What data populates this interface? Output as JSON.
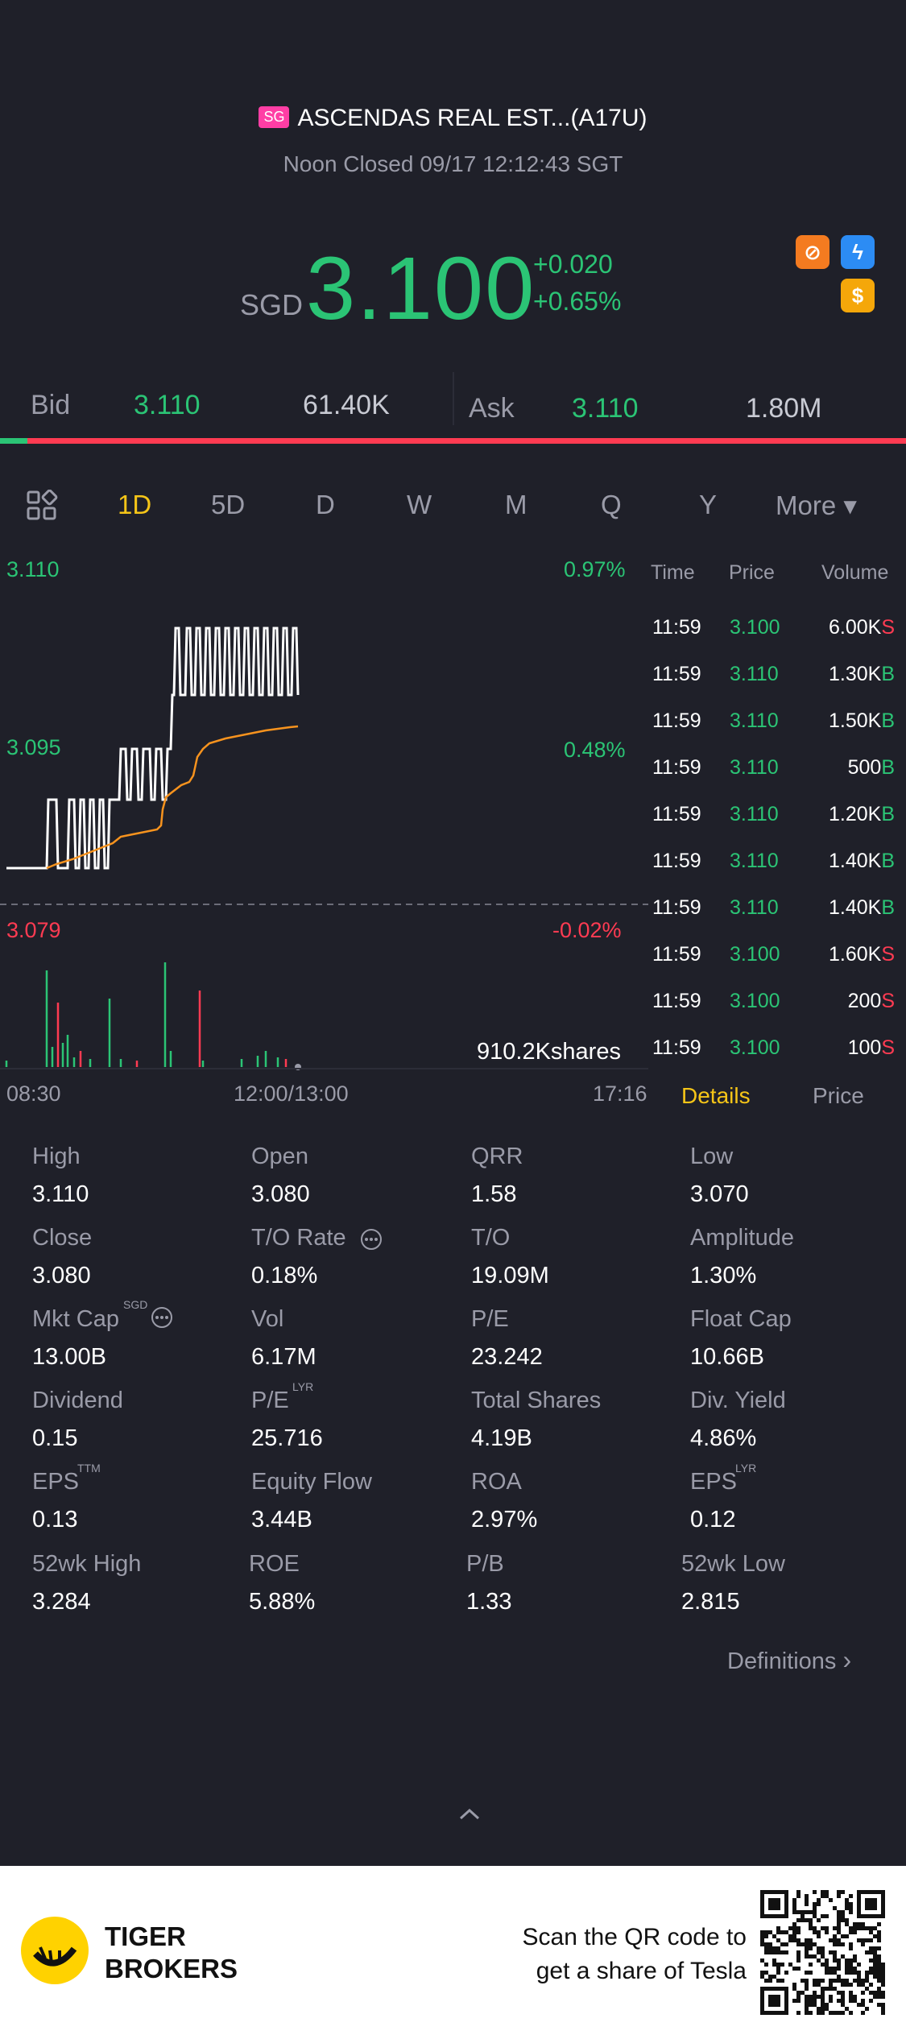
{
  "header": {
    "market": "SG",
    "name": "ASCENDAS REAL EST...(A17U)",
    "status": "Noon Closed 09/17 12:12:43 SGT",
    "currency": "SGD",
    "price": "3.100",
    "change": "+0.020",
    "change_pct": "+0.65%",
    "icons": [
      "no-short-icon",
      "lightning-icon",
      "dollar-icon"
    ]
  },
  "bidask": {
    "bid_label": "Bid",
    "bid_price": "3.110",
    "bid_size": "61.40K",
    "ask_label": "Ask",
    "ask_price": "3.110",
    "ask_size": "1.80M",
    "bid_share": 0.03
  },
  "tabs": [
    "1D",
    "5D",
    "D",
    "W",
    "M",
    "Q",
    "Y",
    "More ▾"
  ],
  "chart": {
    "y_high": "3.110",
    "y_mid": "3.095",
    "y_low": "3.079",
    "pct_high": "0.97%",
    "pct_mid": "0.48%",
    "pct_low": "-0.02%",
    "volume_label": "910.2Kshares",
    "x_start": "08:30",
    "x_mid": "12:00/13:00",
    "x_end": "17:16"
  },
  "ticks": {
    "headers": [
      "Time",
      "Price",
      "Volume"
    ],
    "rows": [
      {
        "time": "11:59",
        "price": "3.100",
        "vol": "6.00K",
        "side": "S"
      },
      {
        "time": "11:59",
        "price": "3.110",
        "vol": "1.30K",
        "side": "B"
      },
      {
        "time": "11:59",
        "price": "3.110",
        "vol": "1.50K",
        "side": "B"
      },
      {
        "time": "11:59",
        "price": "3.110",
        "vol": "500",
        "side": "B"
      },
      {
        "time": "11:59",
        "price": "3.110",
        "vol": "1.20K",
        "side": "B"
      },
      {
        "time": "11:59",
        "price": "3.110",
        "vol": "1.40K",
        "side": "B"
      },
      {
        "time": "11:59",
        "price": "3.110",
        "vol": "1.40K",
        "side": "B"
      },
      {
        "time": "11:59",
        "price": "3.100",
        "vol": "1.60K",
        "side": "S"
      },
      {
        "time": "11:59",
        "price": "3.100",
        "vol": "200",
        "side": "S"
      },
      {
        "time": "11:59",
        "price": "3.100",
        "vol": "100",
        "side": "S"
      }
    ]
  },
  "detail_tabs": {
    "details": "Details",
    "price": "Price"
  },
  "stats": [
    {
      "label": "High",
      "value": "3.110"
    },
    {
      "label": "Open",
      "value": "3.080"
    },
    {
      "label": "QRR",
      "value": "1.58"
    },
    {
      "label": "Low",
      "value": "3.070"
    },
    {
      "label": "Close",
      "value": "3.080"
    },
    {
      "label": "T/O Rate",
      "value": "0.18%"
    },
    {
      "label": "T/O",
      "value": "19.09M"
    },
    {
      "label": "Amplitude",
      "value": "1.30%"
    },
    {
      "label": "Mkt Cap",
      "value": "13.00B"
    },
    {
      "label": "Vol",
      "value": "6.17M"
    },
    {
      "label": "P/E",
      "value": "23.242"
    },
    {
      "label": "Float Cap",
      "value": "10.66B"
    },
    {
      "label": "Dividend",
      "value": "0.15"
    },
    {
      "label": "P/E",
      "value": "25.716"
    },
    {
      "label": "Total Shares",
      "value": "4.19B"
    },
    {
      "label": "Div. Yield",
      "value": "4.86%"
    },
    {
      "label": "EPS",
      "value": "0.13"
    },
    {
      "label": "Equity Flow",
      "value": "3.44B"
    },
    {
      "label": "ROA",
      "value": "2.97%"
    },
    {
      "label": "EPS",
      "value": "0.12"
    },
    {
      "label": "52wk High",
      "value": "3.284"
    },
    {
      "label": "ROE",
      "value": "5.88%"
    },
    {
      "label": "P/B",
      "value": "1.33"
    },
    {
      "label": "52wk Low",
      "value": "2.815"
    }
  ],
  "sups": {
    "mktcap": "SGD",
    "pe_lyr": "LYR",
    "eps_ttm": "TTM",
    "eps_lyr": "LYR"
  },
  "definitions": "Definitions",
  "footer": {
    "brand_line1": "TIGER",
    "brand_line2": "BROKERS",
    "scan_line1": "Scan the QR code to",
    "scan_line2": "get a share of Tesla"
  },
  "colors": {
    "up": "#2bc475",
    "down": "#ff3b52",
    "accent": "#f5c518",
    "avg_line": "#f7931e"
  }
}
